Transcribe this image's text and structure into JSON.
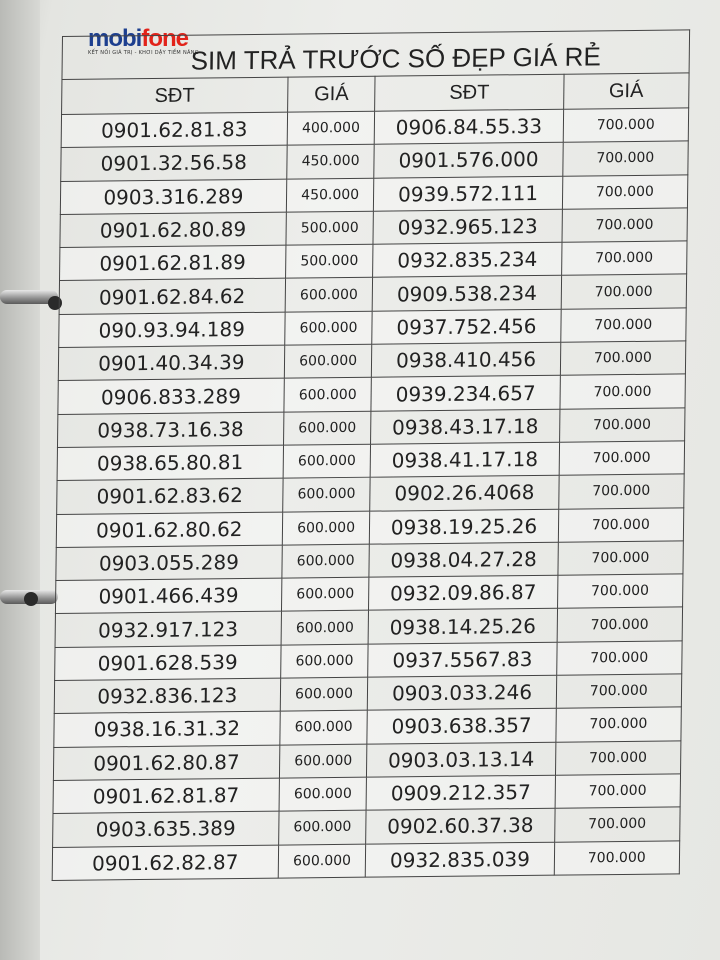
{
  "logo": {
    "text_part1": "mobi",
    "text_part2": "fone",
    "tagline": "KẾT NỐI GIÁ TRỊ - KHƠI DẬY TIỀM NĂNG",
    "colors": {
      "blue": "#1d3f8f",
      "red": "#e2231a"
    }
  },
  "title": "SIM TRẢ TRƯỚC SỐ ĐẸP GIÁ RẺ",
  "headers": [
    "SĐT",
    "GIÁ",
    "SĐT",
    "GIÁ"
  ],
  "rows": [
    [
      "0901.62.81.83",
      "400.000",
      "0906.84.55.33",
      "700.000"
    ],
    [
      "0901.32.56.58",
      "450.000",
      "0901.576.000",
      "700.000"
    ],
    [
      "0903.316.289",
      "450.000",
      "0939.572.111",
      "700.000"
    ],
    [
      "0901.62.80.89",
      "500.000",
      "0932.965.123",
      "700.000"
    ],
    [
      "0901.62.81.89",
      "500.000",
      "0932.835.234",
      "700.000"
    ],
    [
      "0901.62.84.62",
      "600.000",
      "0909.538.234",
      "700.000"
    ],
    [
      "090.93.94.189",
      "600.000",
      "0937.752.456",
      "700.000"
    ],
    [
      "0901.40.34.39",
      "600.000",
      "0938.410.456",
      "700.000"
    ],
    [
      "0906.833.289",
      "600.000",
      "0939.234.657",
      "700.000"
    ],
    [
      "0938.73.16.38",
      "600.000",
      "0938.43.17.18",
      "700.000"
    ],
    [
      "0938.65.80.81",
      "600.000",
      "0938.41.17.18",
      "700.000"
    ],
    [
      "0901.62.83.62",
      "600.000",
      "0902.26.4068",
      "700.000"
    ],
    [
      "0901.62.80.62",
      "600.000",
      "0938.19.25.26",
      "700.000"
    ],
    [
      "0903.055.289",
      "600.000",
      "0938.04.27.28",
      "700.000"
    ],
    [
      "0901.466.439",
      "600.000",
      "0932.09.86.87",
      "700.000"
    ],
    [
      "0932.917.123",
      "600.000",
      "0938.14.25.26",
      "700.000"
    ],
    [
      "0901.628.539",
      "600.000",
      "0937.5567.83",
      "700.000"
    ],
    [
      "0932.836.123",
      "600.000",
      "0903.033.246",
      "700.000"
    ],
    [
      "0938.16.31.32",
      "600.000",
      "0903.638.357",
      "700.000"
    ],
    [
      "0901.62.80.87",
      "600.000",
      "0903.03.13.14",
      "700.000"
    ],
    [
      "0901.62.81.87",
      "600.000",
      "0909.212.357",
      "700.000"
    ],
    [
      "0903.635.389",
      "600.000",
      "0902.60.37.38",
      "700.000"
    ],
    [
      "0901.62.82.87",
      "600.000",
      "0932.835.039",
      "700.000"
    ]
  ]
}
